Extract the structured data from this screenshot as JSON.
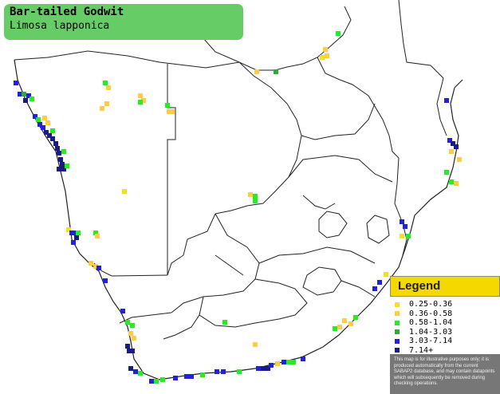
{
  "title": {
    "common_name": "Bar-tailed Godwit",
    "scientific_name": "Limosa lapponica"
  },
  "legend": {
    "heading": "Legend",
    "items": [
      {
        "label": "0.25-0.36",
        "color": "#f5e020"
      },
      {
        "label": "0.36-0.58",
        "color": "#ffcc44"
      },
      {
        "label": "0.58-1.04",
        "color": "#22ee22"
      },
      {
        "label": "1.04-3.03",
        "color": "#33aa33"
      },
      {
        "label": "3.03-7.14",
        "color": "#2222dd"
      },
      {
        "label": "7.14+",
        "color": "#1a1a88"
      }
    ],
    "note": "This map is for illustrative purposes only; it is produced automatically from the current SABAP2 database, and may contain datapoints which will subsequently be removed during checking operations."
  },
  "colors": {
    "title_bg": "#66cc66",
    "legend_header": "#f5d800",
    "border_line": "#222222"
  }
}
